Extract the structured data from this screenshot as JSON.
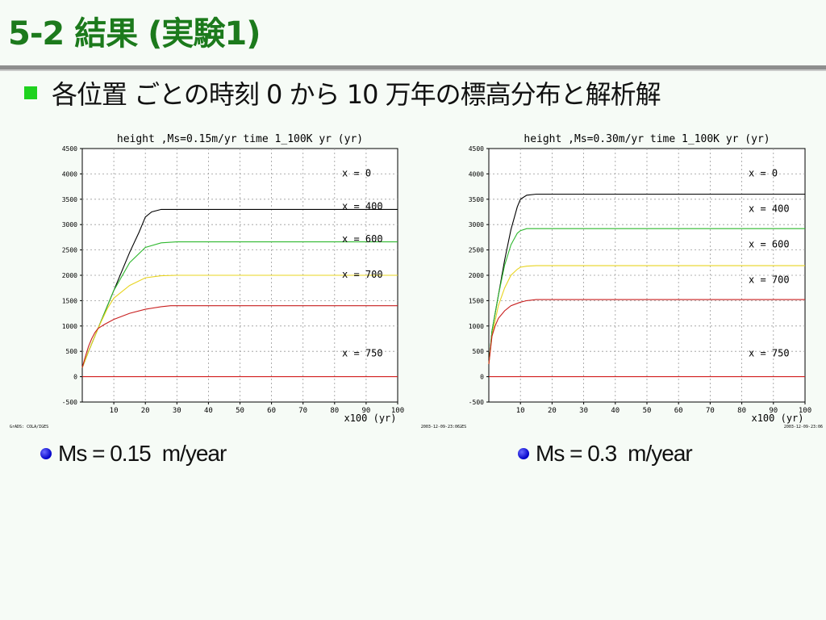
{
  "slide": {
    "title": "5-2 結果 (実験1)",
    "bullet": "各位置 ごとの時刻 0 から 10 万年の標高分布と解析解"
  },
  "captions": [
    {
      "label": "Ms = 0.15",
      "unit": "m/year"
    },
    {
      "label": "Ms = 0.3",
      "unit": "m/year"
    }
  ],
  "chart_data": [
    {
      "type": "line",
      "title": "height ,Ms=0.15m/yr time 1_100K yr (yr)",
      "xlabel": "x100 (yr)",
      "xlim": [
        0,
        100
      ],
      "ylim": [
        -500,
        4500
      ],
      "x_ticks": [
        10,
        20,
        30,
        40,
        50,
        60,
        70,
        80,
        90,
        100
      ],
      "y_ticks": [
        4500,
        4000,
        3500,
        3000,
        2500,
        2000,
        1500,
        1000,
        500,
        0,
        -500
      ],
      "grid": true,
      "footer_left": "GrADS: COLA/IGES",
      "footer_right": "2003-12-09-23:06",
      "series": [
        {
          "name": "x = 0",
          "color": "#000000",
          "x": [
            0,
            2,
            5,
            10,
            15,
            18,
            20,
            22,
            25,
            100
          ],
          "values": [
            180,
            500,
            950,
            1700,
            2450,
            2850,
            3150,
            3250,
            3300,
            3300
          ]
        },
        {
          "name": "x = 400",
          "color": "#2fb82f",
          "x": [
            0,
            2,
            5,
            10,
            15,
            20,
            25,
            30,
            100
          ],
          "values": [
            180,
            500,
            950,
            1700,
            2250,
            2550,
            2640,
            2660,
            2660
          ]
        },
        {
          "name": "x = 600",
          "color": "#e8d420",
          "x": [
            0,
            2,
            5,
            8,
            10,
            15,
            20,
            25,
            30,
            100
          ],
          "values": [
            180,
            500,
            950,
            1350,
            1550,
            1800,
            1950,
            1990,
            2000,
            2000
          ]
        },
        {
          "name": "x = 700",
          "color": "#c81e1e",
          "x": [
            0,
            1,
            2,
            3,
            4,
            5,
            7,
            10,
            15,
            20,
            25,
            28,
            100
          ],
          "values": [
            180,
            400,
            600,
            750,
            870,
            950,
            1030,
            1130,
            1250,
            1330,
            1380,
            1400,
            1400
          ]
        },
        {
          "name": "x = 750",
          "color": "#d21e1e",
          "x": [
            0,
            100
          ],
          "values": [
            0,
            0
          ]
        }
      ],
      "legend": [
        "x = 0",
        "x = 400",
        "x = 600",
        "x = 700",
        "x = 750"
      ]
    },
    {
      "type": "line",
      "title": "height ,Ms=0.30m/yr time 1_100K yr (yr)",
      "xlabel": "x100 (yr)",
      "xlim": [
        0,
        100
      ],
      "ylim": [
        -500,
        4500
      ],
      "x_ticks": [
        10,
        20,
        30,
        40,
        50,
        60,
        70,
        80,
        90,
        100
      ],
      "y_ticks": [
        4500,
        4000,
        3500,
        3000,
        2500,
        2000,
        1500,
        1000,
        500,
        0,
        -500
      ],
      "grid": true,
      "footer_left": "GrADS: COLA/IGES",
      "footer_right": "2003-12-09-23:06",
      "series": [
        {
          "name": "x = 0",
          "color": "#000000",
          "x": [
            0,
            1,
            3,
            5,
            7,
            9,
            10,
            12,
            15,
            100
          ],
          "values": [
            250,
            900,
            1600,
            2300,
            2900,
            3350,
            3500,
            3580,
            3600,
            3600
          ]
        },
        {
          "name": "x = 400",
          "color": "#2fb82f",
          "x": [
            0,
            1,
            3,
            5,
            7,
            9,
            10,
            12,
            15,
            100
          ],
          "values": [
            250,
            900,
            1600,
            2200,
            2600,
            2830,
            2880,
            2920,
            2920,
            2920
          ]
        },
        {
          "name": "x = 600",
          "color": "#e8d420",
          "x": [
            0,
            1,
            3,
            5,
            7,
            9,
            10,
            12,
            15,
            100
          ],
          "values": [
            250,
            800,
            1400,
            1750,
            2000,
            2120,
            2160,
            2180,
            2190,
            2190
          ]
        },
        {
          "name": "x = 700",
          "color": "#c81e1e",
          "x": [
            0,
            1,
            2,
            3,
            5,
            7,
            10,
            12,
            15,
            100
          ],
          "values": [
            250,
            800,
            1000,
            1150,
            1300,
            1400,
            1470,
            1500,
            1520,
            1520
          ]
        },
        {
          "name": "x = 750",
          "color": "#d21e1e",
          "x": [
            0,
            100
          ],
          "values": [
            0,
            0
          ]
        }
      ],
      "legend": [
        "x = 0",
        "x = 400",
        "x = 600",
        "x = 700",
        "x = 750"
      ]
    }
  ]
}
